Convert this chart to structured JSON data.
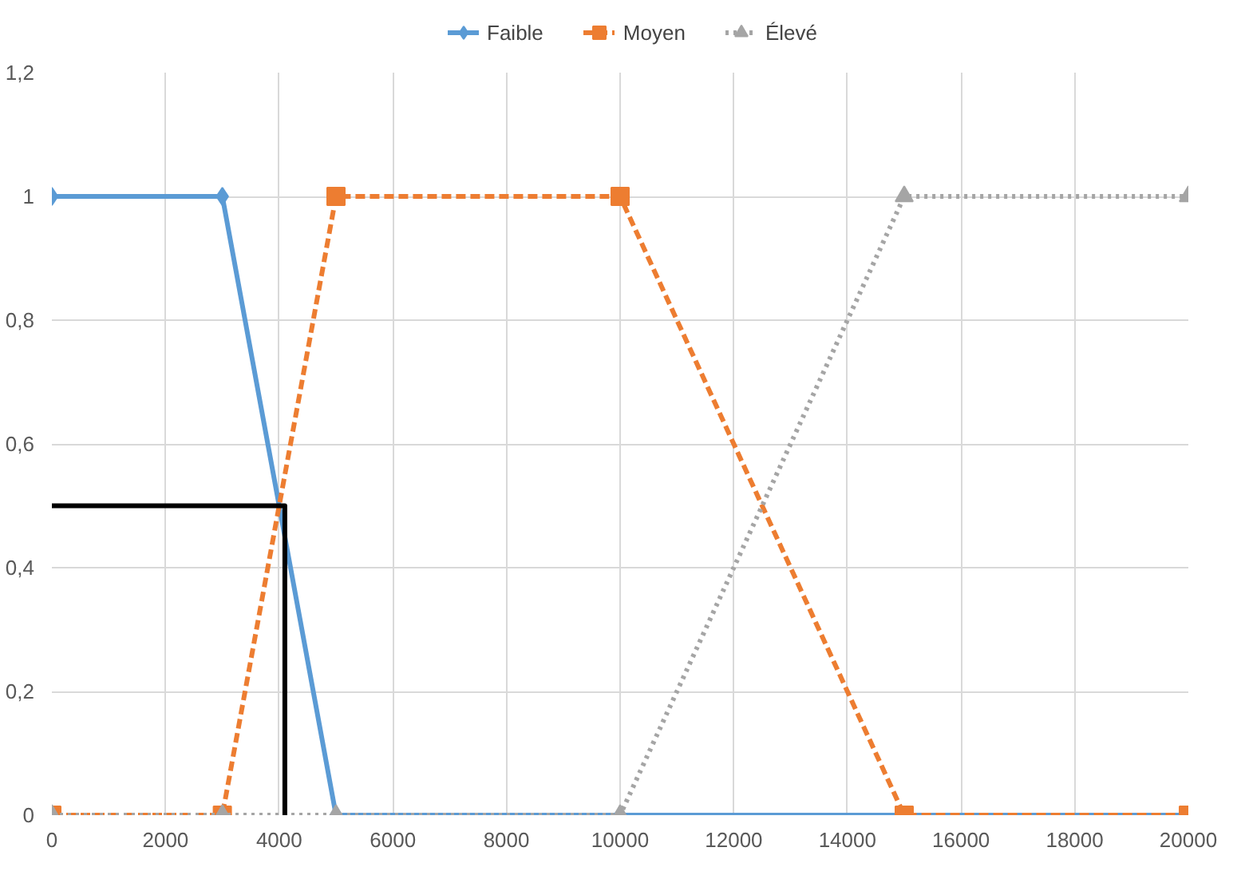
{
  "chart_data": {
    "type": "line",
    "xlim": [
      0,
      20000
    ],
    "ylim": [
      0,
      1.2
    ],
    "xticks": [
      0,
      2000,
      4000,
      6000,
      8000,
      10000,
      12000,
      14000,
      16000,
      18000,
      20000
    ],
    "yticks": [
      0,
      {
        "value": 0.2,
        "label": "0,2"
      },
      {
        "value": 0.4,
        "label": "0,4"
      },
      {
        "value": 0.6,
        "label": "0,6"
      },
      {
        "value": 0.8,
        "label": "0,8"
      },
      1,
      {
        "value": 1.2,
        "label": "1,2"
      }
    ],
    "grid": true,
    "legend": "top",
    "series": [
      {
        "name": "Faible",
        "color": "#5b9bd5",
        "marker": "diamond",
        "line_style": "solid",
        "x": [
          0,
          3000,
          5000,
          10000,
          15000,
          20000
        ],
        "values": [
          1,
          1,
          0,
          0,
          0,
          0
        ]
      },
      {
        "name": "Moyen",
        "color": "#ed7d31",
        "marker": "square",
        "line_style": "dashed",
        "x": [
          0,
          3000,
          5000,
          10000,
          15000,
          20000
        ],
        "values": [
          0,
          0,
          1,
          1,
          0,
          0
        ]
      },
      {
        "name": "Élevé",
        "color": "#a5a5a5",
        "marker": "triangle",
        "line_style": "dotted",
        "x": [
          0,
          3000,
          5000,
          10000,
          15000,
          20000
        ],
        "values": [
          0,
          0,
          0,
          0,
          1,
          1
        ]
      },
      {
        "color": "#000000",
        "marker": "none",
        "line_style": "solid",
        "x": [
          0,
          4100,
          4100
        ],
        "values": [
          0.5,
          0.5,
          0
        ]
      }
    ]
  }
}
